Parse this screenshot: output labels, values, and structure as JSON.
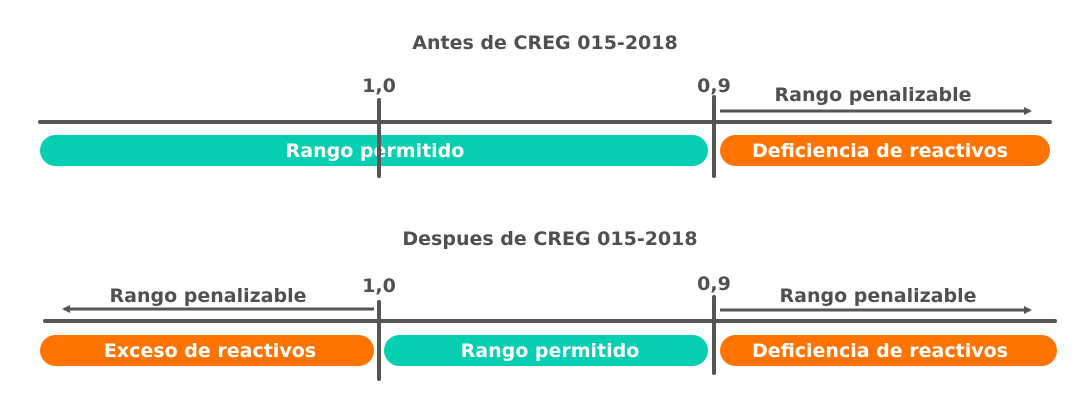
{
  "colors": {
    "permitted": "#05CFB0",
    "penalized": "#FF7400",
    "axis": "#555555",
    "text": "#505050"
  },
  "before": {
    "title": "Antes de CREG 015-2018",
    "tick_1": "1,0",
    "tick_2": "0,9",
    "arrow_right_label": "Rango penalizable",
    "bar_permitted": "Rango permitido",
    "bar_deficiency": "Deficiencia de reactivos"
  },
  "after": {
    "title": "Despues de CREG 015-2018",
    "tick_1": "1,0",
    "tick_2": "0,9",
    "arrow_left_label": "Rango penalizable",
    "arrow_right_label": "Rango penalizable",
    "bar_excess": "Exceso de reactivos",
    "bar_permitted": "Rango permitido",
    "bar_deficiency": "Deficiencia de reactivos"
  }
}
